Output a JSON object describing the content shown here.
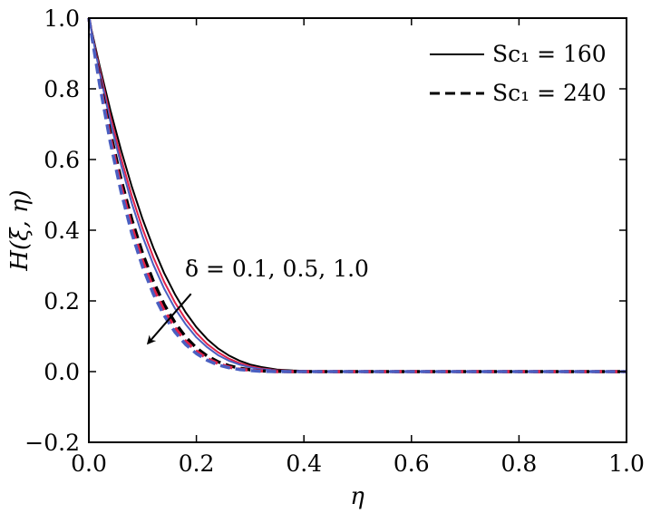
{
  "chart_data": {
    "type": "line",
    "xlabel": "η",
    "ylabel": "H(ξ, η)",
    "xlim": [
      0.0,
      1.0
    ],
    "ylim": [
      -0.2,
      1.0
    ],
    "x_ticks": [
      "0.0",
      "0.2",
      "0.4",
      "0.6",
      "0.8",
      "1.0"
    ],
    "y_ticks": [
      "−0.2",
      "0.0",
      "0.2",
      "0.4",
      "0.6",
      "0.8",
      "1.0"
    ],
    "grid": false,
    "legend": {
      "position": "top-right",
      "entries": [
        {
          "label": "Sc₁ = 160",
          "style": "solid"
        },
        {
          "label": "Sc₁ = 240",
          "style": "dashed"
        }
      ]
    },
    "annotation": {
      "text": "δ = 0.1, 0.5, 1.0",
      "arrow": {
        "from": [
          0.19,
          0.22
        ],
        "to": [
          0.11,
          0.08
        ]
      }
    },
    "colors": {
      "delta_0.1": "#000000",
      "delta_0.5": "#e0224a",
      "delta_1.0": "#4a5fc1"
    },
    "x": [
      0.0,
      0.02,
      0.04,
      0.06,
      0.08,
      0.1,
      0.12,
      0.14,
      0.16,
      0.18,
      0.2,
      0.22,
      0.24,
      0.26,
      0.28,
      0.3,
      0.32,
      0.35,
      0.38,
      0.42,
      0.46,
      0.5,
      0.6,
      0.7,
      0.8,
      0.9,
      1.0
    ],
    "series": [
      {
        "Sc1": 160,
        "delta": 0.1,
        "style": "solid",
        "color": "#000000",
        "values": [
          1.0,
          0.865,
          0.74,
          0.626,
          0.523,
          0.431,
          0.35,
          0.279,
          0.219,
          0.168,
          0.126,
          0.092,
          0.066,
          0.046,
          0.031,
          0.02,
          0.013,
          0.006,
          0.003,
          0.001,
          0.0,
          0.0,
          0.0,
          0.0,
          0.0,
          0.0,
          0.0
        ]
      },
      {
        "Sc1": 160,
        "delta": 0.5,
        "style": "solid",
        "color": "#e0224a",
        "values": [
          1.0,
          0.855,
          0.722,
          0.603,
          0.497,
          0.404,
          0.323,
          0.254,
          0.196,
          0.148,
          0.109,
          0.078,
          0.055,
          0.037,
          0.024,
          0.015,
          0.009,
          0.004,
          0.002,
          0.001,
          0.0,
          0.0,
          0.0,
          0.0,
          0.0,
          0.0,
          0.0
        ]
      },
      {
        "Sc1": 160,
        "delta": 1.0,
        "style": "solid",
        "color": "#4a5fc1",
        "values": [
          1.0,
          0.846,
          0.707,
          0.584,
          0.476,
          0.382,
          0.302,
          0.235,
          0.179,
          0.134,
          0.097,
          0.069,
          0.047,
          0.031,
          0.02,
          0.012,
          0.007,
          0.003,
          0.001,
          0.0,
          0.0,
          0.0,
          0.0,
          0.0,
          0.0,
          0.0,
          0.0
        ]
      },
      {
        "Sc1": 240,
        "delta": 0.1,
        "style": "dashed",
        "color": "#000000",
        "values": [
          1.0,
          0.829,
          0.676,
          0.543,
          0.43,
          0.334,
          0.255,
          0.19,
          0.139,
          0.098,
          0.067,
          0.044,
          0.028,
          0.017,
          0.01,
          0.005,
          0.002,
          0.001,
          0.0,
          0.0,
          0.0,
          0.0,
          0.0,
          0.0,
          0.0,
          0.0,
          0.0
        ]
      },
      {
        "Sc1": 240,
        "delta": 0.5,
        "style": "dashed",
        "color": "#e0224a",
        "values": [
          1.0,
          0.82,
          0.661,
          0.524,
          0.409,
          0.313,
          0.235,
          0.173,
          0.124,
          0.086,
          0.058,
          0.037,
          0.023,
          0.013,
          0.007,
          0.004,
          0.002,
          0.0,
          0.0,
          0.0,
          0.0,
          0.0,
          0.0,
          0.0,
          0.0,
          0.0,
          0.0
        ]
      },
      {
        "Sc1": 240,
        "delta": 1.0,
        "style": "dashed",
        "color": "#4a5fc1",
        "values": [
          1.0,
          0.812,
          0.648,
          0.508,
          0.391,
          0.296,
          0.219,
          0.159,
          0.112,
          0.077,
          0.051,
          0.032,
          0.019,
          0.011,
          0.006,
          0.003,
          0.001,
          0.0,
          0.0,
          0.0,
          0.0,
          0.0,
          0.0,
          0.0,
          0.0,
          0.0,
          0.0
        ]
      }
    ]
  }
}
